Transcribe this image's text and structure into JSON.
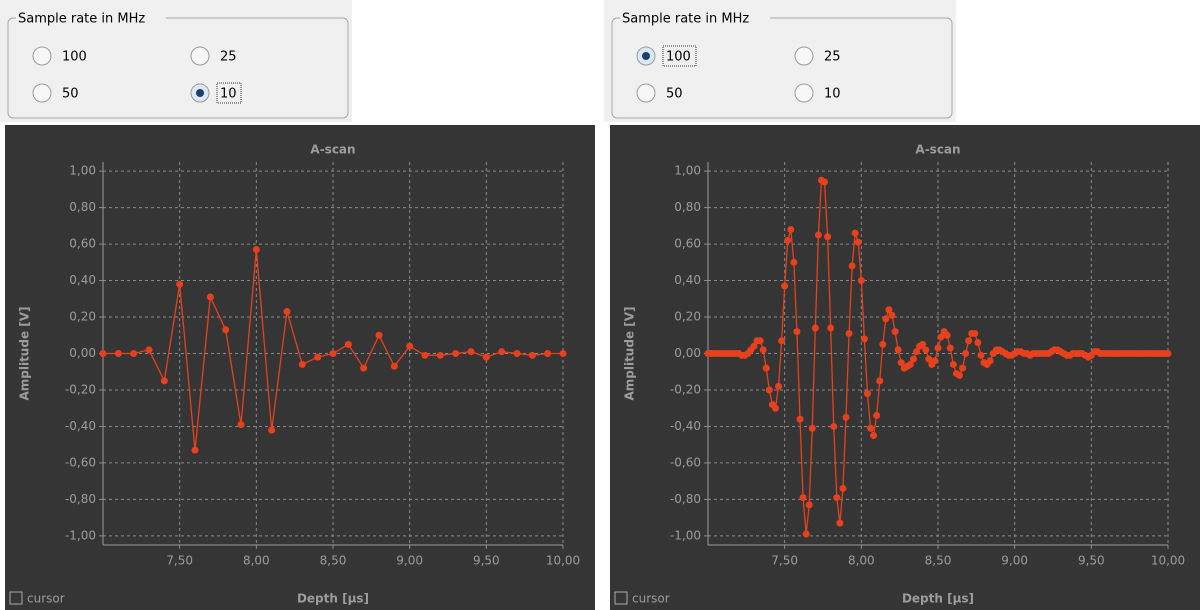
{
  "panels": [
    {
      "group_title": "Sample rate  in MHz",
      "options": [
        "100",
        "25",
        "50",
        "10"
      ],
      "selected": 3,
      "cursor_label": "cursor"
    },
    {
      "group_title": "Sample rate  in MHz",
      "options": [
        "100",
        "25",
        "50",
        "10"
      ],
      "selected": 0,
      "cursor_label": "cursor"
    }
  ],
  "chart_data": [
    {
      "type": "line",
      "title": "A-scan",
      "xlabel": "Depth [µs]",
      "ylabel": "Amplitude [V]",
      "xlim": [
        7,
        10
      ],
      "ylim": [
        -1.05,
        1.05
      ],
      "grid": true,
      "markers": true,
      "xticks": [
        {
          "value": 7.5,
          "label": "7,50"
        },
        {
          "value": 8,
          "label": "8,00"
        },
        {
          "value": 8.5,
          "label": "8,50"
        },
        {
          "value": 9,
          "label": "9,00"
        },
        {
          "value": 9.5,
          "label": "9,50"
        },
        {
          "value": 10,
          "label": "10,00"
        }
      ],
      "yticks": [
        {
          "value": -1,
          "label": "-1,00"
        },
        {
          "value": -0.8,
          "label": "-0,80"
        },
        {
          "value": -0.6,
          "label": "-0,60"
        },
        {
          "value": -0.4,
          "label": "-0,40"
        },
        {
          "value": -0.2,
          "label": "-0,20"
        },
        {
          "value": 0,
          "label": "0,00"
        },
        {
          "value": 0.2,
          "label": "0,20"
        },
        {
          "value": 0.4,
          "label": "0,40"
        },
        {
          "value": 0.6,
          "label": "0,60"
        },
        {
          "value": 0.8,
          "label": "0,80"
        },
        {
          "value": 1,
          "label": "1,00"
        }
      ],
      "x": [
        7,
        7.1,
        7.2,
        7.3,
        7.4,
        7.5,
        7.6,
        7.7,
        7.8,
        7.9,
        8,
        8.1,
        8.2,
        8.3,
        8.4,
        8.5,
        8.6,
        8.7,
        8.8,
        8.9,
        9,
        9.1,
        9.2,
        9.3,
        9.4,
        9.5,
        9.6,
        9.7,
        9.8,
        9.9,
        10
      ],
      "series": [
        {
          "color": "#e8401c",
          "values": [
            0,
            0,
            0,
            0.02,
            -0.15,
            0.38,
            -0.53,
            0.31,
            0.13,
            -0.39,
            0.57,
            -0.42,
            0.23,
            -0.06,
            -0.02,
            0,
            0.05,
            -0.08,
            0.1,
            -0.07,
            0.04,
            -0.01,
            -0.01,
            0,
            0.01,
            -0.02,
            0.01,
            0,
            -0.01,
            0,
            0
          ]
        }
      ]
    },
    {
      "type": "line",
      "title": "A-scan",
      "xlabel": "Depth [µs]",
      "ylabel": "Amplitude [V]",
      "xlim": [
        7,
        10
      ],
      "ylim": [
        -1.05,
        1.05
      ],
      "grid": true,
      "markers": true,
      "xticks": [
        {
          "value": 7.5,
          "label": "7,50"
        },
        {
          "value": 8,
          "label": "8,00"
        },
        {
          "value": 8.5,
          "label": "8,50"
        },
        {
          "value": 9,
          "label": "9,00"
        },
        {
          "value": 9.5,
          "label": "9,50"
        },
        {
          "value": 10,
          "label": "10,00"
        }
      ],
      "yticks": [
        {
          "value": -1,
          "label": "-1,00"
        },
        {
          "value": -0.8,
          "label": "-0,80"
        },
        {
          "value": -0.6,
          "label": "-0,60"
        },
        {
          "value": -0.4,
          "label": "-0,40"
        },
        {
          "value": -0.2,
          "label": "-0,20"
        },
        {
          "value": 0,
          "label": "0,00"
        },
        {
          "value": 0.2,
          "label": "0,20"
        },
        {
          "value": 0.4,
          "label": "0,40"
        },
        {
          "value": 0.6,
          "label": "0,60"
        },
        {
          "value": 0.8,
          "label": "0,80"
        },
        {
          "value": 1,
          "label": "1,00"
        }
      ],
      "x": [
        7,
        7.02,
        7.04,
        7.06,
        7.08,
        7.1,
        7.12,
        7.14,
        7.16,
        7.18,
        7.2,
        7.22,
        7.24,
        7.26,
        7.28,
        7.3,
        7.32,
        7.34,
        7.36,
        7.38,
        7.4,
        7.42,
        7.44,
        7.46,
        7.48,
        7.5,
        7.52,
        7.54,
        7.56,
        7.58,
        7.6,
        7.62,
        7.64,
        7.66,
        7.68,
        7.7,
        7.72,
        7.74,
        7.76,
        7.78,
        7.8,
        7.82,
        7.84,
        7.86,
        7.88,
        7.9,
        7.92,
        7.94,
        7.96,
        7.98,
        8,
        8.02,
        8.04,
        8.06,
        8.08,
        8.1,
        8.12,
        8.14,
        8.16,
        8.18,
        8.2,
        8.22,
        8.24,
        8.26,
        8.28,
        8.3,
        8.32,
        8.34,
        8.36,
        8.38,
        8.4,
        8.42,
        8.44,
        8.46,
        8.48,
        8.5,
        8.52,
        8.54,
        8.56,
        8.58,
        8.6,
        8.62,
        8.64,
        8.66,
        8.68,
        8.7,
        8.72,
        8.74,
        8.76,
        8.78,
        8.8,
        8.82,
        8.84,
        8.86,
        8.88,
        8.9,
        8.92,
        8.94,
        8.96,
        8.98,
        9,
        9.02,
        9.04,
        9.06,
        9.08,
        9.1,
        9.12,
        9.14,
        9.16,
        9.18,
        9.2,
        9.22,
        9.24,
        9.26,
        9.28,
        9.3,
        9.32,
        9.34,
        9.36,
        9.38,
        9.4,
        9.42,
        9.44,
        9.46,
        9.48,
        9.5,
        9.52,
        9.54,
        9.56,
        9.58,
        9.6,
        9.62,
        9.64,
        9.66,
        9.68,
        9.7,
        9.72,
        9.74,
        9.76,
        9.78,
        9.8,
        9.82,
        9.84,
        9.86,
        9.88,
        9.9,
        9.92,
        9.94,
        9.96,
        9.98,
        10
      ],
      "series": [
        {
          "color": "#e8401c",
          "values": [
            0,
            0,
            0,
            0,
            0,
            0,
            0,
            0,
            0,
            0,
            0,
            -0.01,
            -0.01,
            0,
            0.02,
            0.04,
            0.07,
            0.07,
            0.02,
            -0.08,
            -0.2,
            -0.28,
            -0.3,
            -0.18,
            0.07,
            0.37,
            0.62,
            0.68,
            0.5,
            0.12,
            -0.36,
            -0.79,
            -0.99,
            -0.83,
            -0.41,
            0.14,
            0.65,
            0.95,
            0.94,
            0.64,
            0.14,
            -0.4,
            -0.79,
            -0.93,
            -0.74,
            -0.35,
            0.11,
            0.48,
            0.66,
            0.61,
            0.4,
            0.08,
            -0.22,
            -0.41,
            -0.45,
            -0.34,
            -0.15,
            0.05,
            0.19,
            0.24,
            0.21,
            0.12,
            0.02,
            -0.05,
            -0.08,
            -0.07,
            -0.06,
            -0.03,
            0.01,
            0.04,
            0.05,
            0.02,
            -0.03,
            -0.06,
            -0.04,
            0.03,
            0.09,
            0.12,
            0.1,
            0.03,
            -0.06,
            -0.11,
            -0.12,
            -0.08,
            0,
            0.07,
            0.11,
            0.11,
            0.06,
            -0.01,
            -0.05,
            -0.06,
            -0.04,
            0,
            0.02,
            0.02,
            0.01,
            0,
            -0.01,
            -0.01,
            0,
            0.01,
            0.01,
            0,
            0,
            -0.01,
            0,
            0,
            0,
            0,
            0,
            0,
            0.01,
            0.02,
            0.02,
            0.01,
            0,
            -0.01,
            -0.01,
            0,
            0,
            0,
            0,
            -0.01,
            -0.02,
            -0.01,
            0.01,
            0.01,
            0,
            0,
            0,
            0,
            0,
            0,
            0,
            0,
            0,
            0,
            0,
            0,
            0,
            0,
            0,
            0,
            0,
            0,
            0,
            0,
            0,
            0,
            0
          ]
        }
      ]
    }
  ]
}
